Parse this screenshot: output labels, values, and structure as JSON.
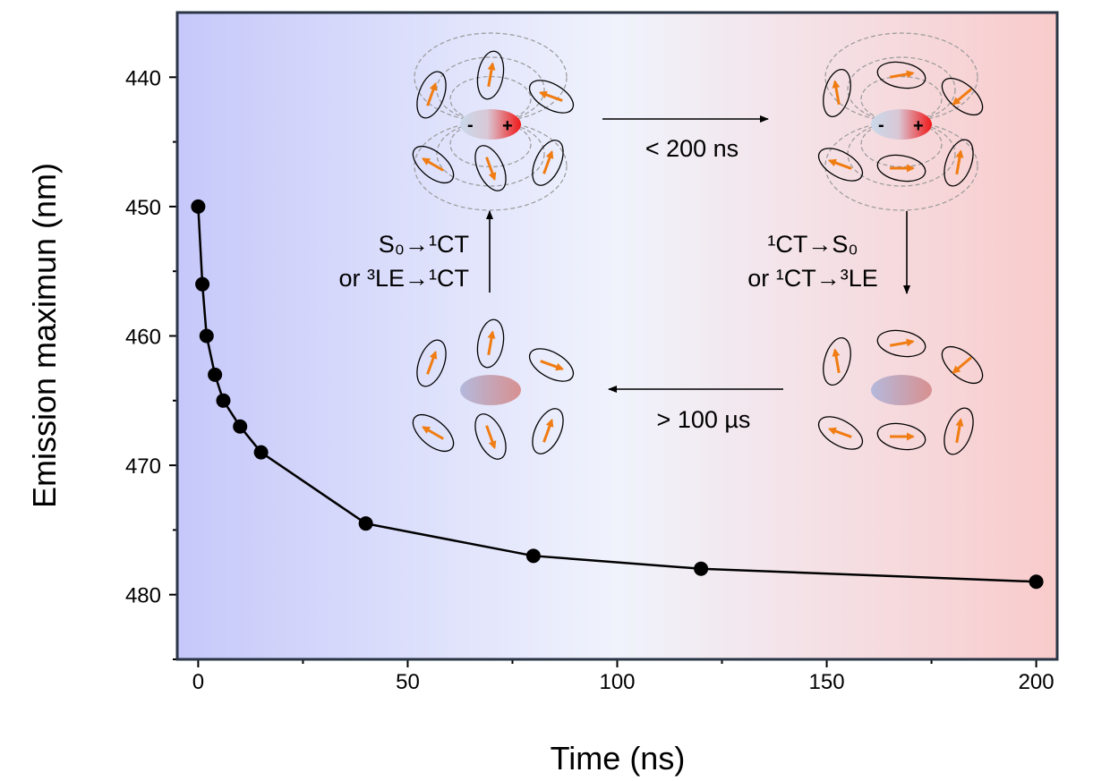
{
  "chart_data": {
    "type": "line",
    "title": "",
    "xlabel": "Time (ns)",
    "ylabel": "Emission maximun (nm)",
    "xlim": [
      -5,
      205
    ],
    "ylim": [
      435,
      485
    ],
    "y_inverted": true,
    "grid": false,
    "x_ticks": [
      0,
      50,
      100,
      150,
      200
    ],
    "x_tick_labels": [
      "0",
      "50",
      "100",
      "150",
      "200"
    ],
    "y_ticks": [
      440,
      450,
      460,
      470,
      480
    ],
    "y_tick_labels": [
      "440",
      "450",
      "460",
      "470",
      "480"
    ],
    "series": [
      {
        "name": "Emission maximum",
        "x": [
          0,
          1,
          2,
          4,
          6,
          10,
          15,
          40,
          80,
          120,
          200
        ],
        "y": [
          450,
          456,
          460,
          463,
          465,
          467,
          469,
          474.5,
          477,
          478,
          479
        ],
        "color": "#000000"
      }
    ],
    "annotations": {
      "forward_time": "< 200 ns",
      "backward_time": "> 100 µs",
      "left_transition_1": "S₀→¹CT",
      "left_transition_2": "or ³LE→¹CT",
      "right_transition_1": "¹CT→S₀",
      "right_transition_2": "or ¹CT→³LE",
      "minus_sign": "-",
      "plus_sign": "+"
    },
    "colors": {
      "bg_left": "#c6c8fa",
      "bg_mid": "#f0f3fc",
      "bg_right": "#f9cbcb",
      "arrow": "#f07c12",
      "frame": "#2a3646"
    }
  }
}
